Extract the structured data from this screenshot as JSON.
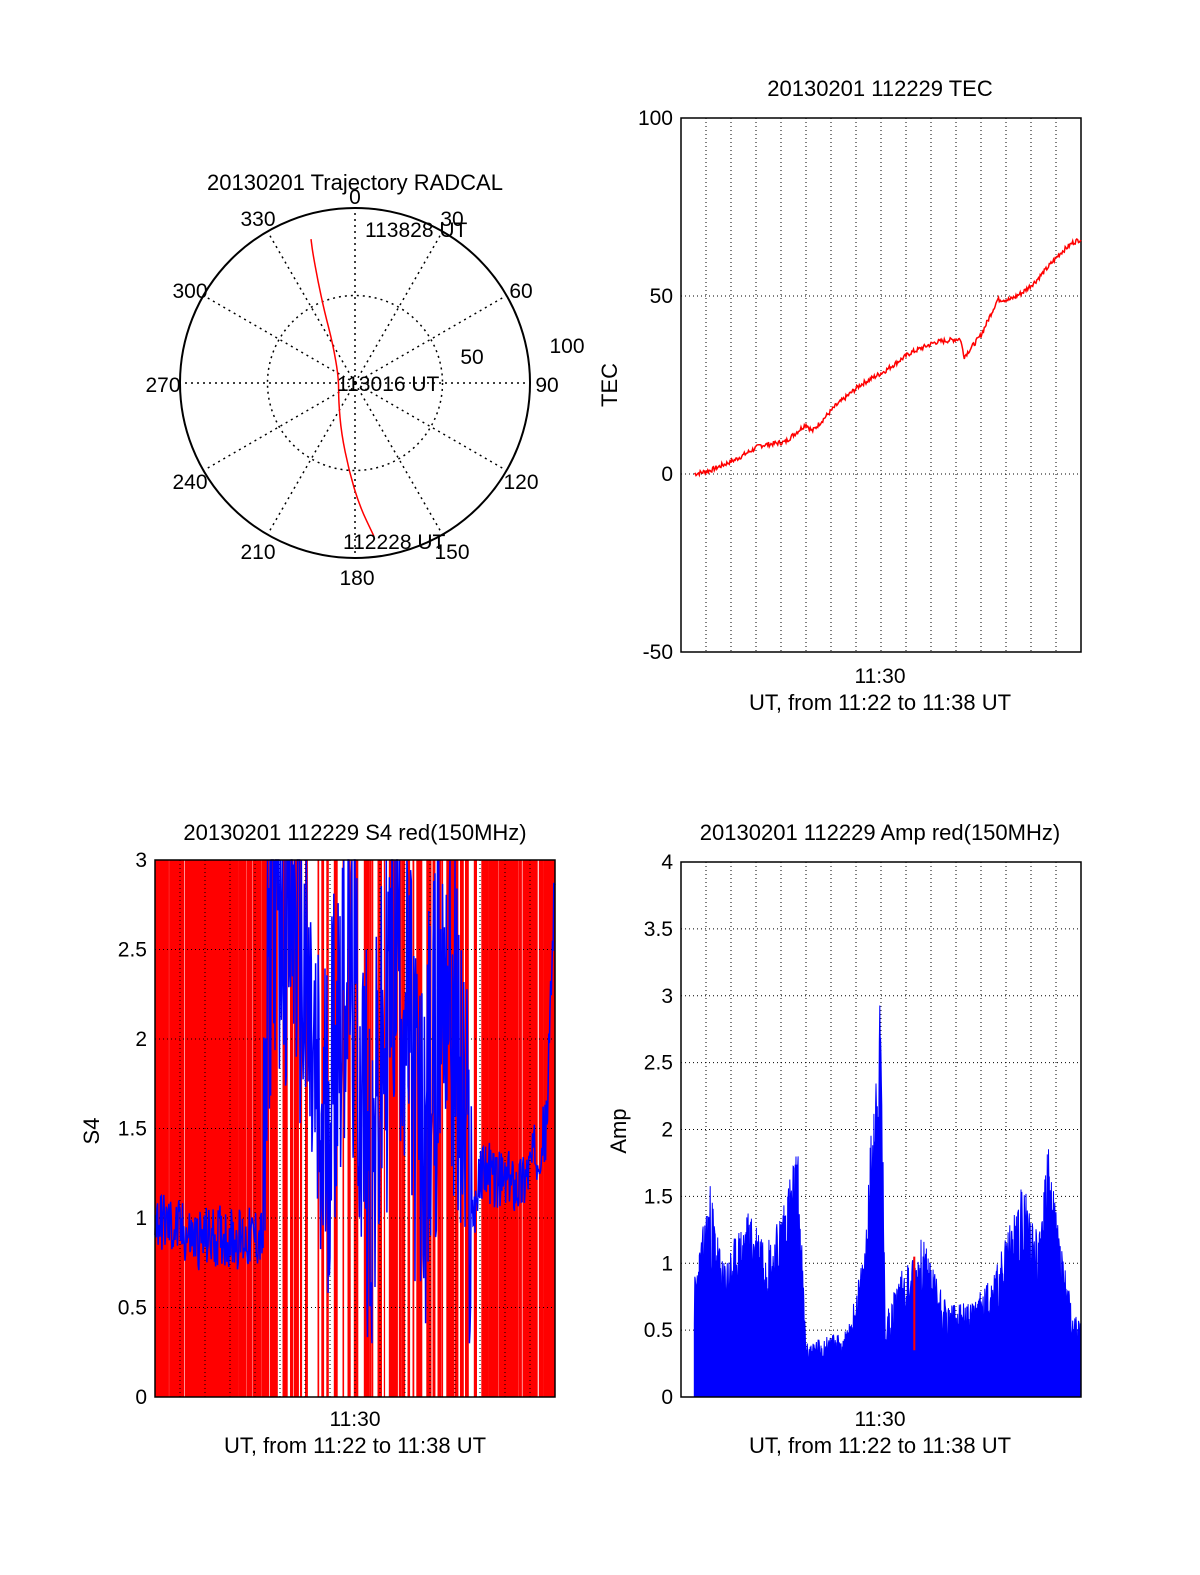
{
  "colors": {
    "primary_series": "#ff0000",
    "secondary_series": "#0000ff",
    "axes": "#000000",
    "grid": "#000000",
    "background": "#ffffff"
  },
  "chart_data": [
    {
      "type": "polar",
      "title": "20130201 Trajectory RADCAL",
      "azimuth_tick_labels": [
        "0",
        "30",
        "60",
        "90",
        "120",
        "150",
        "180",
        "210",
        "240",
        "270",
        "300",
        "330"
      ],
      "radial_tick_labels": [
        "50",
        "100"
      ],
      "rlim": [
        0,
        100
      ],
      "grid": "dotted",
      "series": [
        {
          "color": "#ff0000",
          "points": [
            {
              "az": 173,
              "r": 88
            },
            {
              "az": 178,
              "r": 70
            },
            {
              "az": 184,
              "r": 50
            },
            {
              "az": 195,
              "r": 30
            },
            {
              "az": 222,
              "r": 14
            },
            {
              "az": 290,
              "r": 10
            },
            {
              "az": 330,
              "r": 25
            },
            {
              "az": 337,
              "r": 45
            },
            {
              "az": 340,
              "r": 62
            },
            {
              "az": 342,
              "r": 78
            },
            {
              "az": 343,
              "r": 86
            }
          ]
        }
      ],
      "annotations": [
        {
          "text": "113828 UT",
          "az": 14,
          "r": 88
        },
        {
          "text": "113016 UT",
          "az": 75,
          "r": 12
        },
        {
          "text": "112228 UT",
          "az": 158,
          "r": 90
        }
      ]
    },
    {
      "type": "line",
      "title": "20130201 112229 TEC",
      "xlabel": "UT, from 11:22 to 11:38 UT",
      "ylabel": "TEC",
      "xlim": [
        "11:21:20",
        "11:37:20"
      ],
      "ylim": [
        -50,
        100
      ],
      "y_ticks": [
        "-50",
        "0",
        "50",
        "100"
      ],
      "x_tick_labels": [
        "11:30"
      ],
      "grid": "dotted",
      "series": [
        {
          "color": "#ff0000",
          "x": [
            "11:21:52",
            "11:22:30",
            "11:23:30",
            "11:24:30",
            "11:25:30",
            "11:26:20",
            "11:26:35",
            "11:27:30",
            "11:28:30",
            "11:29:30",
            "11:30:30",
            "11:31:30",
            "11:32:30",
            "11:32:40",
            "11:33:20",
            "11:34:00",
            "11:34:30",
            "11:35:00",
            "11:35:30",
            "11:36:00",
            "11:36:30",
            "11:37:00",
            "11:37:20"
          ],
          "y": [
            0,
            1,
            4,
            8,
            9,
            14,
            12,
            19,
            25,
            29,
            34,
            37,
            38,
            33,
            39,
            49,
            49,
            51,
            54,
            58,
            62,
            65,
            66
          ]
        }
      ]
    },
    {
      "type": "area",
      "title": "20130201 112229 S4 red(150MHz)",
      "xlabel": "UT, from 11:22 to 11:38 UT",
      "ylabel": "S4",
      "xlim": [
        "11:21:20",
        "11:37:20"
      ],
      "ylim": [
        0,
        3
      ],
      "y_ticks": [
        "0",
        "0.5",
        "1",
        "1.5",
        "2",
        "2.5",
        "3"
      ],
      "x_tick_labels": [
        "11:30"
      ],
      "grid": "dotted",
      "series": [
        {
          "color": "#ff0000",
          "description_value": "saturated red vertical bars reaching 3, dense at 11:21–11:25 and 11:34–11:37, intermittent in between"
        },
        {
          "color": "#0000ff",
          "x": [
            "11:21:20",
            "11:22:00",
            "11:23:00",
            "11:24:00",
            "11:25:00",
            "11:25:40",
            "11:26:00",
            "11:27:00",
            "11:28:00",
            "11:29:00",
            "11:30:00",
            "11:31:00",
            "11:32:00",
            "11:33:00",
            "11:34:00",
            "11:34:30",
            "11:35:00",
            "11:36:00",
            "11:37:00",
            "11:37:20"
          ],
          "y": [
            1.0,
            0.95,
            0.88,
            0.9,
            0.88,
            0.9,
            3.0,
            2.7,
            1.3,
            2.6,
            1.2,
            2.7,
            1.3,
            2.5,
            1.0,
            1.3,
            1.2,
            1.2,
            1.5,
            3.0
          ]
        }
      ]
    },
    {
      "type": "area",
      "title": "20130201 112229 Amp red(150MHz)",
      "xlabel": "UT, from 11:22 to 11:38 UT",
      "ylabel": "Amp",
      "xlim": [
        "11:21:20",
        "11:37:20"
      ],
      "ylim": [
        0,
        4
      ],
      "y_ticks": [
        "0",
        "0.5",
        "1",
        "1.5",
        "2",
        "2.5",
        "3",
        "3.5",
        "4"
      ],
      "x_tick_labels": [
        "11:30"
      ],
      "grid": "dotted",
      "series": [
        {
          "color": "#0000ff",
          "x": [
            "11:21:52",
            "11:22:30",
            "11:23:00",
            "11:24:00",
            "11:25:00",
            "11:26:00",
            "11:26:20",
            "11:27:00",
            "11:28:00",
            "11:28:40",
            "11:29:05",
            "11:29:20",
            "11:29:30",
            "11:30:00",
            "11:31:00",
            "11:32:00",
            "11:33:00",
            "11:34:00",
            "11:35:00",
            "11:35:40",
            "11:36:00",
            "11:37:00",
            "11:37:20"
          ],
          "y": [
            0.9,
            1.6,
            1.0,
            1.4,
            1.2,
            1.9,
            0.4,
            0.45,
            0.5,
            1.1,
            2.5,
            3.07,
            0.6,
            0.9,
            1.2,
            0.7,
            0.7,
            1.0,
            1.6,
            1.25,
            1.9,
            0.6,
            0.6
          ]
        },
        {
          "color": "#ff0000",
          "x": [
            "11:29:20",
            "11:30:40"
          ],
          "y": [
            0.05,
            1.05
          ]
        }
      ]
    }
  ]
}
